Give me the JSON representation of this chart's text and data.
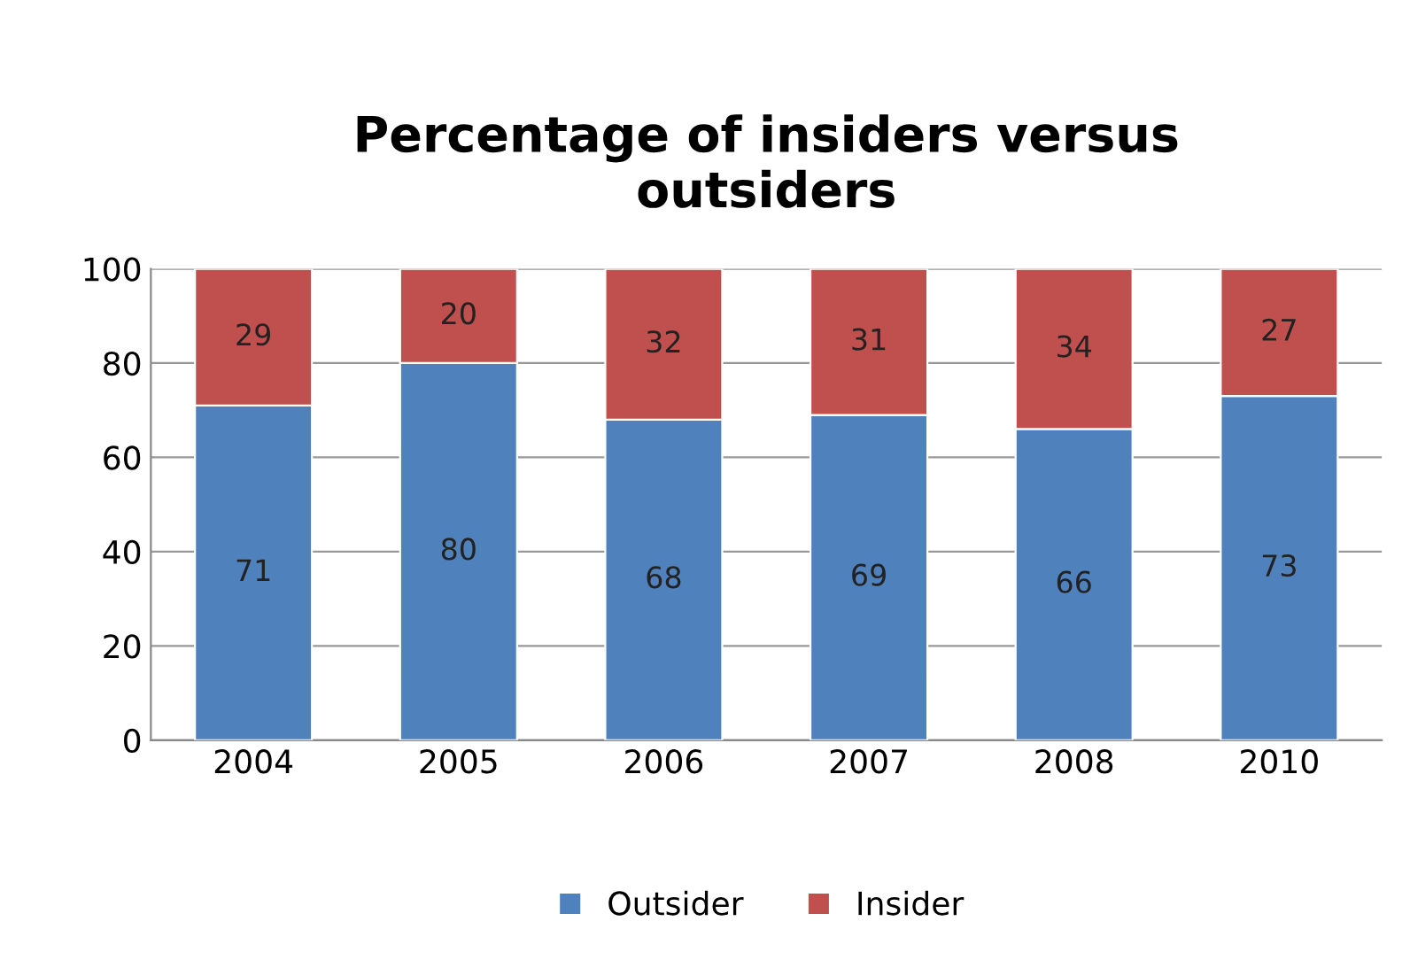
{
  "chart_data": {
    "type": "bar",
    "title": "Percentage of insiders versus\noutsiders",
    "stacked": true,
    "categories": [
      "2004",
      "2005",
      "2006",
      "2007",
      "2008",
      "2010"
    ],
    "series": [
      {
        "name": "Outsider",
        "color": "#4f81bd",
        "values": [
          71,
          80,
          68,
          69,
          66,
          73
        ]
      },
      {
        "name": "Insider",
        "color": "#c0504d",
        "values": [
          29,
          20,
          32,
          31,
          34,
          27
        ]
      }
    ],
    "ylim": [
      0,
      100
    ],
    "yticks": [
      0,
      20,
      40,
      60,
      80,
      100
    ],
    "grid": "y",
    "legend": "bottom",
    "data_labels": true
  }
}
